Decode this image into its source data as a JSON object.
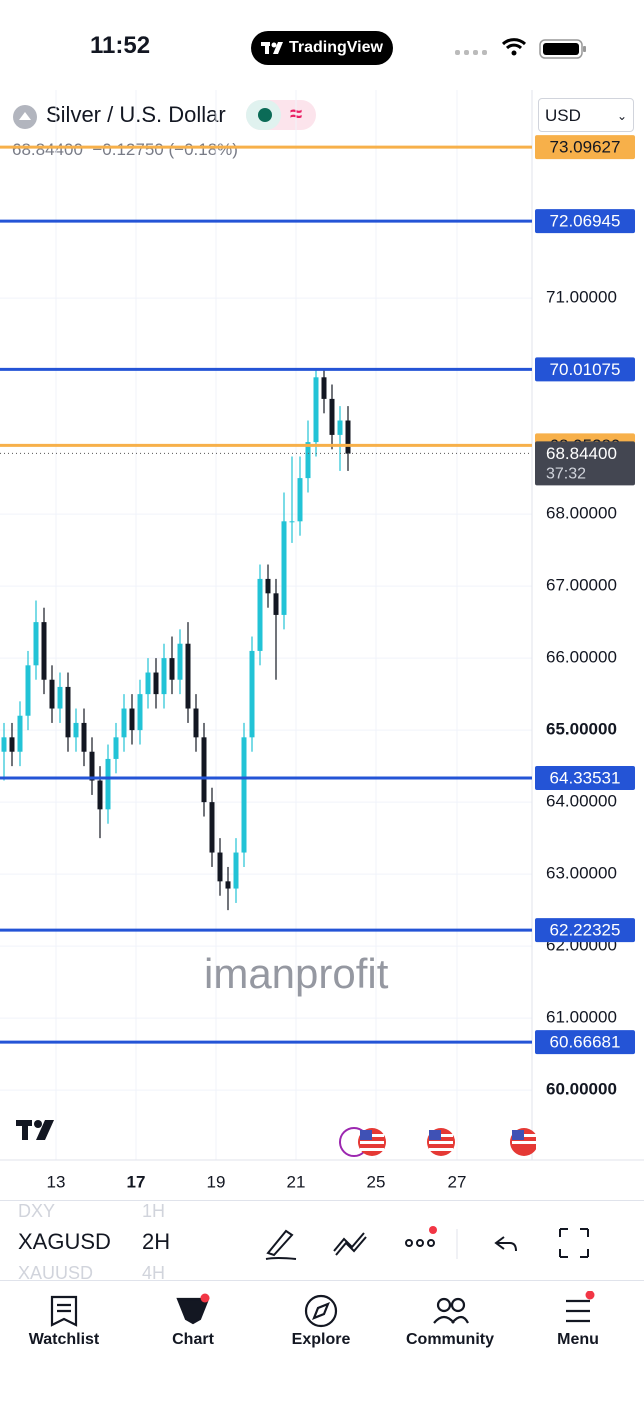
{
  "status_bar": {
    "time": "11:52",
    "app": "TradingView"
  },
  "header": {
    "symbol": "Silver / U.S. Dollar",
    "currency": "USD",
    "last": "68.84400",
    "change": "−0.12750",
    "change_pct": "(−0.18%)"
  },
  "chart": {
    "type": "candlestick",
    "watermark": "imanprofit",
    "ylim": [
      59.03,
      73.89
    ],
    "yticks": [
      {
        "value": 71,
        "label": "71.00000"
      },
      {
        "value": 68,
        "label": "68.00000"
      },
      {
        "value": 67,
        "label": "67.00000"
      },
      {
        "value": 66,
        "label": "66.00000"
      },
      {
        "value": 65,
        "label": "65.00000"
      },
      {
        "value": 64,
        "label": "64.00000"
      },
      {
        "value": 63,
        "label": "63.00000"
      },
      {
        "value": 62,
        "label": "62.00000"
      },
      {
        "value": 61,
        "label": "61.00000"
      },
      {
        "value": 60,
        "label": "60.00000"
      }
    ],
    "x_labels": [
      "13",
      "17",
      "19",
      "21",
      "25",
      "27"
    ],
    "levels": [
      {
        "value": 73.09627,
        "color": "#f7b04a"
      },
      {
        "value": 72.06945,
        "color": "#2454d6"
      },
      {
        "value": 70.01075,
        "color": "#2454d6"
      },
      {
        "value": 68.95389,
        "color": "#f7b04a"
      },
      {
        "value": 64.33531,
        "color": "#2454d6"
      },
      {
        "value": 62.22325,
        "color": "#2454d6"
      },
      {
        "value": 60.66681,
        "color": "#2454d6"
      }
    ],
    "last_price": {
      "value": 68.844,
      "label": "68.84400"
    },
    "countdown": "37:32",
    "up_color": "#22c3d6",
    "down_color": "#131722",
    "open": [
      64.7,
      64.9,
      64.7,
      65.2,
      65.9,
      66.5,
      65.7,
      65.3,
      65.6,
      64.9,
      65.1,
      64.7,
      64.3,
      63.9,
      64.6,
      64.9,
      65.3,
      65.0,
      65.5,
      65.8,
      65.5,
      66.0,
      65.7,
      66.2,
      65.3,
      64.9,
      64.0,
      63.3,
      62.9,
      62.8,
      63.3,
      64.9,
      66.1,
      67.1,
      66.9,
      66.6,
      67.9,
      67.9,
      68.5,
      69.0,
      69.9,
      69.6,
      69.1,
      69.3
    ],
    "high": [
      65.1,
      65.1,
      65.4,
      66.1,
      66.8,
      66.7,
      65.9,
      65.8,
      65.8,
      65.3,
      65.3,
      64.9,
      64.5,
      64.8,
      65.1,
      65.5,
      65.5,
      65.7,
      66.0,
      66.0,
      66.2,
      66.3,
      66.4,
      66.5,
      65.5,
      65.1,
      64.2,
      63.5,
      63.1,
      63.5,
      65.1,
      66.3,
      67.3,
      67.3,
      67.1,
      68.3,
      68.8,
      68.8,
      69.3,
      70.0,
      70.0,
      69.8,
      69.5,
      69.5
    ],
    "low": [
      64.3,
      64.5,
      64.5,
      65.0,
      65.7,
      65.5,
      65.1,
      65.1,
      64.7,
      64.7,
      64.5,
      64.1,
      63.5,
      63.7,
      64.4,
      64.7,
      64.8,
      64.8,
      65.3,
      65.3,
      65.3,
      65.5,
      65.5,
      65.1,
      64.7,
      63.8,
      63.1,
      62.7,
      62.5,
      62.6,
      63.1,
      64.7,
      65.9,
      66.7,
      65.7,
      66.4,
      67.6,
      67.7,
      68.3,
      68.8,
      69.4,
      68.9,
      68.6,
      68.6
    ],
    "close": [
      64.9,
      64.7,
      65.2,
      65.9,
      66.5,
      65.7,
      65.3,
      65.6,
      64.9,
      65.1,
      64.7,
      64.3,
      63.9,
      64.6,
      64.9,
      65.3,
      65.0,
      65.5,
      65.8,
      65.5,
      66.0,
      65.7,
      66.2,
      65.3,
      64.9,
      64.0,
      63.3,
      62.9,
      62.8,
      63.3,
      64.9,
      66.1,
      67.1,
      66.9,
      66.6,
      67.9,
      67.9,
      68.5,
      69.0,
      69.9,
      69.6,
      69.1,
      69.3,
      68.84
    ]
  },
  "toolbar": {
    "prev_symbol": "DXY",
    "prev_interval": "1H",
    "symbol": "XAGUSD",
    "interval": "2H",
    "next_symbol": "XAUUSD",
    "next_interval": "4H"
  },
  "nav": [
    "Watchlist",
    "Chart",
    "Explore",
    "Community",
    "Menu"
  ]
}
